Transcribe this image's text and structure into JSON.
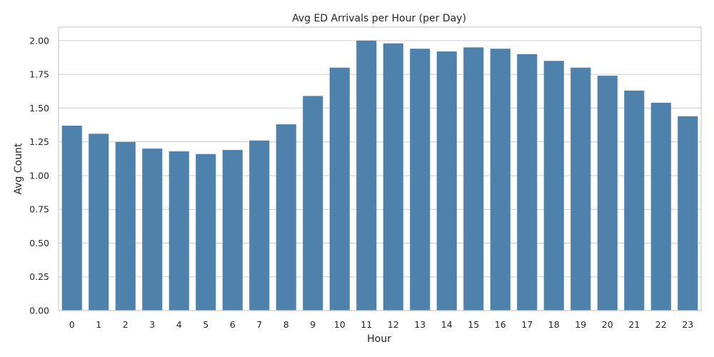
{
  "chart_data": {
    "type": "bar",
    "title": "Avg ED Arrivals per Hour (per Day)",
    "xlabel": "Hour",
    "ylabel": "Avg Count",
    "categories": [
      "0",
      "1",
      "2",
      "3",
      "4",
      "5",
      "6",
      "7",
      "8",
      "9",
      "10",
      "11",
      "12",
      "13",
      "14",
      "15",
      "16",
      "17",
      "18",
      "19",
      "20",
      "21",
      "22",
      "23"
    ],
    "values": [
      1.37,
      1.31,
      1.25,
      1.2,
      1.18,
      1.16,
      1.19,
      1.26,
      1.38,
      1.59,
      1.8,
      2.0,
      1.98,
      1.94,
      1.92,
      1.95,
      1.94,
      1.9,
      1.85,
      1.8,
      1.74,
      1.63,
      1.54,
      1.44
    ],
    "ylim": [
      0,
      2.1
    ],
    "yticks": [
      "0.00",
      "0.25",
      "0.50",
      "0.75",
      "1.00",
      "1.25",
      "1.50",
      "1.75",
      "2.00"
    ],
    "grid": "horizontal",
    "bar_color": "#4e81ab",
    "grid_color": "#cccccc"
  }
}
